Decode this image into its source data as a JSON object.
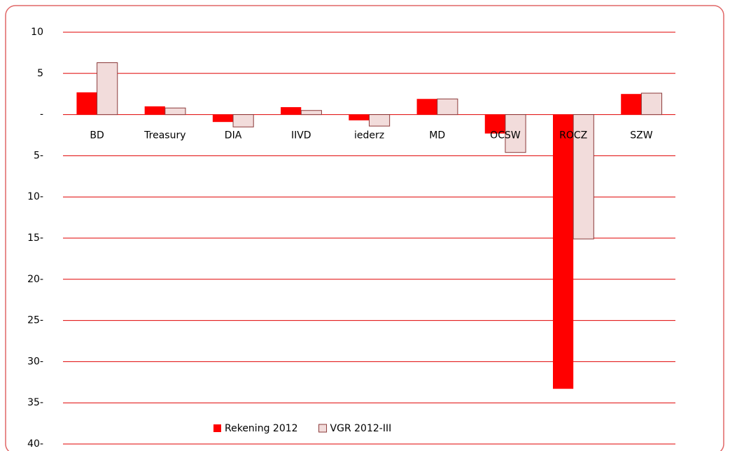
{
  "chart_data": {
    "type": "bar",
    "categories": [
      "BD",
      "Treasury",
      "DIA",
      "IIVD",
      "iederz",
      "MD",
      "OCSW",
      "ROCZ",
      "SZW"
    ],
    "series": [
      {
        "name": "Rekening 2012",
        "color": "#ff0000",
        "values": [
          2.7,
          1.0,
          -0.9,
          0.9,
          -0.7,
          1.9,
          -2.3,
          -33.3,
          2.5
        ]
      },
      {
        "name": "VGR 2012-III",
        "color": "#f2dcdb",
        "values": [
          6.3,
          0.8,
          -1.5,
          0.5,
          -1.4,
          1.9,
          -4.6,
          -15.1,
          2.6
        ]
      }
    ],
    "ylim": [
      -40,
      10
    ],
    "yticks": [
      10,
      5,
      {
        "value": 0,
        "label": "-"
      },
      {
        "value": -5,
        "label": "5-"
      },
      {
        "value": -10,
        "label": "10-"
      },
      {
        "value": -15,
        "label": "15-"
      },
      {
        "value": -20,
        "label": "20-"
      },
      {
        "value": -25,
        "label": "25-"
      },
      {
        "value": -30,
        "label": "30-"
      },
      {
        "value": -35,
        "label": "35-"
      },
      {
        "value": -40,
        "label": "40-"
      }
    ],
    "grid": true,
    "legend": "bottom"
  }
}
